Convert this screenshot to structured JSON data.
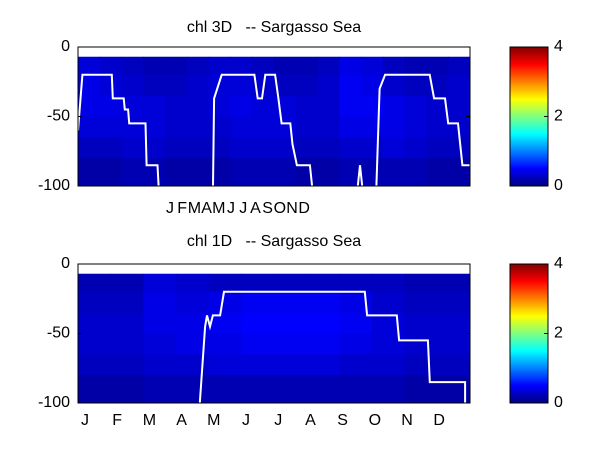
{
  "chart_data": [
    {
      "type": "heatmap",
      "title": "chl 3D   -- Sargasso Sea",
      "categories": [
        "J",
        "F",
        "M",
        "A",
        "M",
        "J",
        "J",
        "A",
        "S",
        "O",
        "N",
        "D"
      ],
      "xlim": [
        0,
        36
      ],
      "ylim": [
        -100,
        0
      ],
      "yticks": [
        0,
        -50,
        -100
      ],
      "clim": [
        0,
        4
      ],
      "cticks": [
        0,
        2,
        4
      ],
      "colormap": "jet",
      "x_edges": [
        0,
        2,
        4,
        6,
        8,
        10,
        12,
        14,
        16,
        18,
        20,
        22,
        24,
        26,
        28,
        30,
        32,
        34,
        36
      ],
      "depth_edges": [
        -7,
        -20,
        -35,
        -50,
        -65,
        -80,
        -100
      ],
      "values": [
        [
          0.35,
          0.3,
          0.25,
          0.2,
          0.2,
          0.25,
          0.3,
          0.3,
          0.25,
          0.2,
          0.2,
          0.25,
          0.4,
          0.35,
          0.25,
          0.2,
          0.2,
          0.25
        ],
        [
          0.4,
          0.35,
          0.3,
          0.25,
          0.25,
          0.3,
          0.35,
          0.35,
          0.3,
          0.25,
          0.25,
          0.3,
          0.45,
          0.4,
          0.3,
          0.25,
          0.25,
          0.3
        ],
        [
          0.4,
          0.4,
          0.35,
          0.35,
          0.3,
          0.3,
          0.35,
          0.4,
          0.35,
          0.35,
          0.3,
          0.3,
          0.45,
          0.45,
          0.4,
          0.35,
          0.3,
          0.3
        ],
        [
          0.35,
          0.35,
          0.35,
          0.35,
          0.3,
          0.3,
          0.3,
          0.35,
          0.35,
          0.35,
          0.3,
          0.3,
          0.4,
          0.4,
          0.4,
          0.35,
          0.3,
          0.3
        ],
        [
          0.25,
          0.25,
          0.3,
          0.3,
          0.25,
          0.25,
          0.25,
          0.3,
          0.3,
          0.3,
          0.25,
          0.25,
          0.3,
          0.3,
          0.35,
          0.3,
          0.25,
          0.25
        ],
        [
          0.15,
          0.15,
          0.2,
          0.2,
          0.15,
          0.15,
          0.15,
          0.2,
          0.2,
          0.2,
          0.15,
          0.15,
          0.2,
          0.2,
          0.2,
          0.2,
          0.15,
          0.15
        ]
      ],
      "line": {
        "color": "#ffffff",
        "x": [
          0,
          0.4,
          3.1,
          3.2,
          4.2,
          4.3,
          4.6,
          4.7,
          6.2,
          6.3,
          7.3,
          7.4,
          null,
          12.4,
          12.5,
          13.2,
          16.2,
          16.5,
          16.9,
          17.2,
          18.1,
          18.4,
          18.7,
          19.5,
          19.7,
          20.1,
          21.3,
          21.5,
          null,
          25.7,
          25.9,
          26.1,
          null,
          27.4,
          27.7,
          28.2,
          32.3,
          32.7,
          33.7,
          34.0,
          34.9,
          35.3,
          36
        ],
        "y": [
          -60,
          -20,
          -20,
          -37,
          -37,
          -45,
          -45,
          -55,
          -55,
          -85,
          -85,
          -100,
          null,
          -100,
          -37,
          -20,
          -20,
          -37,
          -37,
          -20,
          -20,
          -37,
          -55,
          -55,
          -70,
          -85,
          -85,
          -100,
          null,
          -100,
          -85,
          -100,
          null,
          -100,
          -30,
          -20,
          -20,
          -37,
          -37,
          -55,
          -55,
          -85,
          -85
        ]
      }
    },
    {
      "type": "heatmap",
      "title": "chl 1D   -- Sargasso Sea",
      "categories": [
        "J",
        "F",
        "M",
        "A",
        "M",
        "J",
        "J",
        "A",
        "S",
        "O",
        "N",
        "D"
      ],
      "xlim": [
        0,
        12
      ],
      "ylim": [
        -100,
        0
      ],
      "yticks": [
        0,
        -50,
        -100
      ],
      "clim": [
        0,
        4
      ],
      "cticks": [
        0,
        2,
        4
      ],
      "colormap": "jet",
      "x_edges": [
        0,
        1,
        2,
        3,
        4,
        5,
        6,
        7,
        8,
        9,
        10,
        11,
        12
      ],
      "depth_edges": [
        -7,
        -20,
        -35,
        -50,
        -65,
        -80,
        -100
      ],
      "values": [
        [
          0.2,
          0.2,
          0.35,
          0.3,
          0.25,
          0.25,
          0.25,
          0.25,
          0.25,
          0.25,
          0.2,
          0.2
        ],
        [
          0.25,
          0.25,
          0.4,
          0.35,
          0.4,
          0.45,
          0.45,
          0.45,
          0.4,
          0.3,
          0.25,
          0.25
        ],
        [
          0.3,
          0.3,
          0.4,
          0.4,
          0.45,
          0.5,
          0.5,
          0.5,
          0.45,
          0.35,
          0.3,
          0.3
        ],
        [
          0.3,
          0.3,
          0.35,
          0.4,
          0.4,
          0.45,
          0.45,
          0.45,
          0.4,
          0.35,
          0.3,
          0.3
        ],
        [
          0.25,
          0.25,
          0.3,
          0.3,
          0.35,
          0.35,
          0.35,
          0.35,
          0.3,
          0.3,
          0.25,
          0.25
        ],
        [
          0.15,
          0.15,
          0.2,
          0.2,
          0.2,
          0.2,
          0.2,
          0.2,
          0.2,
          0.2,
          0.15,
          0.15
        ]
      ],
      "line": {
        "color": "#ffffff",
        "x": [
          3.73,
          3.89,
          3.95,
          4.04,
          4.13,
          4.35,
          4.47,
          8.78,
          8.85,
          9.76,
          9.83,
          10.71,
          10.77,
          11.85,
          11.85
        ],
        "y": [
          -100,
          -45,
          -37,
          -45,
          -37,
          -37,
          -20,
          -20,
          -37,
          -37,
          -55,
          -55,
          -85,
          -85,
          -100
        ]
      }
    }
  ]
}
